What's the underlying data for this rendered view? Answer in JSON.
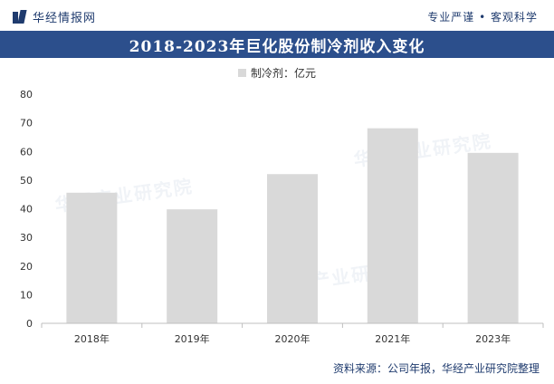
{
  "header": {
    "brand": "华经情报网",
    "slogan": "专业严谨 • 客观科学"
  },
  "chart_data": {
    "type": "bar",
    "title": "2018-2023年巨化股份制冷剂收入变化",
    "categories": [
      "2018年",
      "2019年",
      "2020年",
      "2021年",
      "2023年"
    ],
    "series": [
      {
        "name": "制冷剂：亿元",
        "values": [
          45.6,
          39.8,
          52.1,
          68.1,
          59.5
        ]
      }
    ],
    "ylim": [
      0,
      80
    ],
    "yticks": [
      0,
      10,
      20,
      30,
      40,
      50,
      60,
      70,
      80
    ],
    "grid": false,
    "legend": "top-center",
    "bar_color": "#d9d9d9"
  },
  "footer": {
    "source": "资料来源：公司年报，华经产业研究院整理"
  },
  "watermark": {
    "text": "华经产业研究院"
  }
}
